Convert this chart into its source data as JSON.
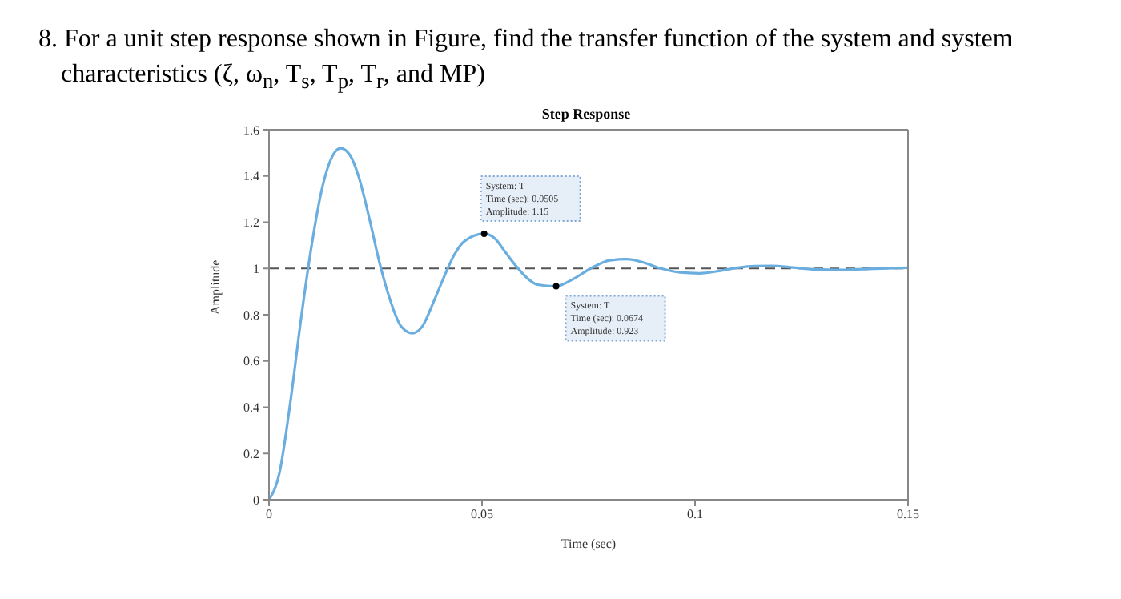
{
  "chart_data": {
    "type": "line",
    "title": "Step Response",
    "xlabel": "Time (sec)",
    "ylabel": "Amplitude",
    "annotations": [
      "8. For a unit step response shown in Figure, find the transfer function of the system and system characteristics (ζ, ω$_{n}$, T$_{s}$, T$_{p}$, T$_{r}$, and MP)",
      {
        "text": "System: T\nTime (sec): 0.0505\nAmplitude: 1.15",
        "x": 0.0505,
        "y": 1.15
      },
      {
        "text": "System: T\nTime (sec): 0.0674\nAmplitude: 0.923",
        "x": 0.0674,
        "y": 0.923
      }
    ],
    "x": [
      0,
      0.0025,
      0.005,
      0.0075,
      0.01,
      0.0125,
      0.015,
      0.0168,
      0.019,
      0.021,
      0.0235,
      0.026,
      0.0285,
      0.031,
      0.0337,
      0.036,
      0.0385,
      0.041,
      0.0435,
      0.046,
      0.0505,
      0.053,
      0.0555,
      0.058,
      0.0605,
      0.063,
      0.0674,
      0.071,
      0.0755,
      0.08,
      0.084,
      0.088,
      0.092,
      0.0965,
      0.101,
      0.106,
      0.11,
      0.114,
      0.118,
      0.123,
      0.127,
      0.135,
      0.142,
      0.15
    ],
    "series": [
      {
        "color": "#6aaee0",
        "values": [
          0,
          0.12,
          0.42,
          0.78,
          1.1,
          1.35,
          1.49,
          1.52,
          1.49,
          1.4,
          1.22,
          1.02,
          0.86,
          0.75,
          0.72,
          0.75,
          0.85,
          0.96,
          1.06,
          1.12,
          1.15,
          1.13,
          1.07,
          1.01,
          0.96,
          0.93,
          0.923,
          0.95,
          1.0,
          1.035,
          1.04,
          1.025,
          1.0,
          0.983,
          0.979,
          0.99,
          1.003,
          1.01,
          1.011,
          1.004,
          0.997,
          0.994,
          0.999,
          1.003
        ]
      }
    ],
    "xlim": [
      0,
      0.15
    ],
    "xticks": [
      0,
      0.05,
      0.1,
      0.15
    ],
    "ylim": [
      0,
      1.6
    ],
    "yticks": [
      0,
      0.2,
      0.4,
      0.6,
      0.8,
      1,
      1.2,
      1.4,
      1.6
    ],
    "ref_lines": [
      {
        "axis": "y",
        "value": 1,
        "color": "#555555",
        "line_style": "dashed"
      }
    ],
    "grid": false,
    "legend": false,
    "marker": "none",
    "line_style": "solid"
  }
}
